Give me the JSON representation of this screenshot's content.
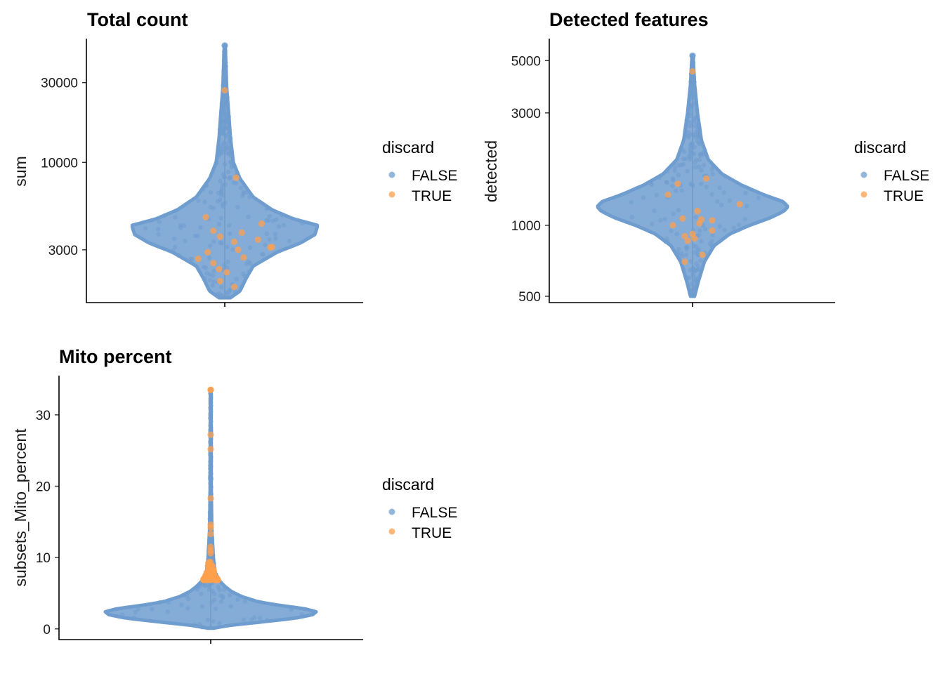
{
  "chart_data": [
    {
      "type": "violin",
      "title": "Total count",
      "xlabel": "",
      "ylabel": "sum",
      "y_scale": "log10",
      "y_ticks": [
        3000,
        10000,
        30000
      ],
      "y_tick_labels": [
        "3000",
        "10000",
        "30000"
      ],
      "y_range": [
        1450,
        55000
      ],
      "legend": {
        "title": "discard",
        "entries": [
          "FALSE",
          "TRUE"
        ],
        "placement": "right"
      },
      "colors": {
        "FALSE": "#6F9DCF",
        "TRUE": "#FFA04D"
      },
      "distribution": {
        "max": 50000,
        "min": 1550,
        "mode": 3900,
        "shape_y": [
          1550,
          1700,
          2000,
          2400,
          2900,
          3300,
          3700,
          4200,
          4600,
          5200,
          6200,
          8000,
          10000,
          14000,
          20000,
          28000,
          50000
        ],
        "shape_halfwidth_frac": [
          0.06,
          0.16,
          0.22,
          0.3,
          0.55,
          0.8,
          0.95,
          0.98,
          0.72,
          0.5,
          0.3,
          0.16,
          0.09,
          0.06,
          0.04,
          0.02,
          0.005
        ]
      },
      "true_points": [
        {
          "y": 27000,
          "offset": 0
        },
        {
          "y": 8100,
          "offset": 0.12
        },
        {
          "y": 3450,
          "offset": 0.35
        },
        {
          "y": 3100,
          "offset": 0.48
        },
        {
          "y": 3120,
          "offset": 0.5
        },
        {
          "y": 4300,
          "offset": 0.39
        },
        {
          "y": 2700,
          "offset": 0.2
        },
        {
          "y": 2500,
          "offset": -0.12
        },
        {
          "y": 2300,
          "offset": -0.06
        },
        {
          "y": 2200,
          "offset": 0.02
        },
        {
          "y": 2650,
          "offset": -0.28
        },
        {
          "y": 3900,
          "offset": -0.12
        },
        {
          "y": 3600,
          "offset": -0.05
        },
        {
          "y": 3350,
          "offset": 0.1
        },
        {
          "y": 3000,
          "offset": 0.14
        },
        {
          "y": 1800,
          "offset": 0.1
        },
        {
          "y": 1950,
          "offset": -0.05
        },
        {
          "y": 4700,
          "offset": -0.2
        },
        {
          "y": 3800,
          "offset": 0.18
        },
        {
          "y": 2900,
          "offset": -0.18
        }
      ]
    },
    {
      "type": "violin",
      "title": "Detected features",
      "xlabel": "",
      "ylabel": "detected",
      "y_scale": "log10",
      "y_ticks": [
        500,
        1000,
        3000,
        5000
      ],
      "y_tick_labels": [
        "500",
        "1000",
        "3000",
        "5000"
      ],
      "y_range": [
        470,
        6200
      ],
      "legend": {
        "title": "discard",
        "entries": [
          "FALSE",
          "TRUE"
        ],
        "placement": "right"
      },
      "colors": {
        "FALSE": "#6F9DCF",
        "TRUE": "#FFA04D"
      },
      "distribution": {
        "max": 5250,
        "min": 500,
        "mode": 1200,
        "shape_y": [
          500,
          580,
          700,
          820,
          920,
          1000,
          1080,
          1150,
          1200,
          1260,
          1350,
          1480,
          1650,
          1900,
          2300,
          3000,
          4000,
          5250
        ],
        "shape_halfwidth_frac": [
          0.02,
          0.06,
          0.12,
          0.22,
          0.38,
          0.58,
          0.8,
          0.93,
          0.97,
          0.92,
          0.72,
          0.5,
          0.3,
          0.16,
          0.09,
          0.05,
          0.02,
          0.005
        ]
      },
      "true_points": [
        {
          "y": 4500,
          "offset": 0
        },
        {
          "y": 1580,
          "offset": 0.14
        },
        {
          "y": 1230,
          "offset": 0.48
        },
        {
          "y": 1060,
          "offset": 0.09
        },
        {
          "y": 1070,
          "offset": -0.1
        },
        {
          "y": 900,
          "offset": -0.08
        },
        {
          "y": 880,
          "offset": 0.02
        },
        {
          "y": 860,
          "offset": -0.05
        },
        {
          "y": 750,
          "offset": 0.1
        },
        {
          "y": 700,
          "offset": -0.08
        },
        {
          "y": 1000,
          "offset": -0.2
        },
        {
          "y": 1050,
          "offset": 0.2
        },
        {
          "y": 950,
          "offset": 0.2
        },
        {
          "y": 1500,
          "offset": -0.15
        },
        {
          "y": 1150,
          "offset": 0.05
        },
        {
          "y": 1350,
          "offset": -0.25
        },
        {
          "y": 920,
          "offset": 0.0
        },
        {
          "y": 1020,
          "offset": 0.07
        }
      ]
    },
    {
      "type": "violin",
      "title": "Mito percent",
      "xlabel": "",
      "ylabel": "subsets_Mito_percent",
      "y_scale": "linear",
      "y_ticks": [
        0,
        10,
        20,
        30
      ],
      "y_tick_labels": [
        "0",
        "10",
        "20",
        "30"
      ],
      "y_range": [
        -1.5,
        35.5
      ],
      "legend": {
        "title": "discard",
        "entries": [
          "FALSE",
          "TRUE"
        ],
        "placement": "right"
      },
      "colors": {
        "FALSE": "#6F9DCF",
        "TRUE": "#FFA04D"
      },
      "distribution": {
        "max": 33.5,
        "min": 0.1,
        "mode": 2.4,
        "shape_y": [
          0.1,
          0.5,
          1.0,
          1.5,
          2.0,
          2.4,
          2.8,
          3.3,
          3.8,
          4.5,
          5.2,
          6.0,
          6.8,
          8.0,
          10,
          14,
          20,
          33.5
        ],
        "shape_halfwidth_frac": [
          0.03,
          0.18,
          0.5,
          0.8,
          0.97,
          1.0,
          0.9,
          0.65,
          0.45,
          0.3,
          0.2,
          0.13,
          0.08,
          0.04,
          0.025,
          0.01,
          0.005,
          0.003
        ]
      },
      "threshold": 6.8,
      "true_points": [
        {
          "y": 33.5,
          "offset": 0
        },
        {
          "y": 27.2,
          "offset": 0
        },
        {
          "y": 25.2,
          "offset": 0
        },
        {
          "y": 18.3,
          "offset": 0
        },
        {
          "y": 14.6,
          "offset": 0
        },
        {
          "y": 14.2,
          "offset": 0
        },
        {
          "y": 13.3,
          "offset": 0
        },
        {
          "y": 11.5,
          "offset": 0
        },
        {
          "y": 11.0,
          "offset": 0
        },
        {
          "y": 10.6,
          "offset": 0
        }
      ]
    }
  ]
}
